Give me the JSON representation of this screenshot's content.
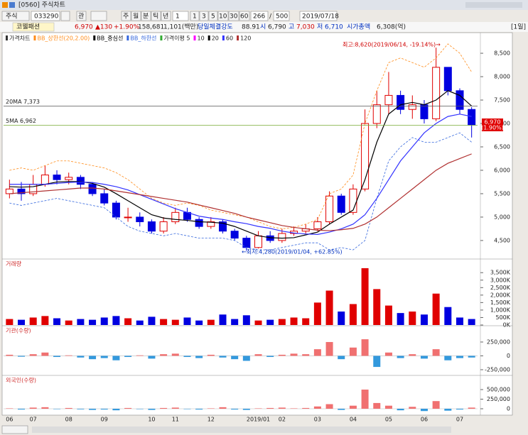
{
  "window": {
    "title": "[0560] 주식차트"
  },
  "toolbar": {
    "market": "주식",
    "code": "033290",
    "watch": "관",
    "buttons": [
      "주",
      "월",
      "분",
      "틱",
      "년"
    ],
    "interval": "1",
    "periods": [
      "1",
      "3",
      "5",
      "10",
      "30",
      "60"
    ],
    "count": "266",
    "total": "500",
    "date": "2019/07/18"
  },
  "info_bar": {
    "name": "코웰패션",
    "price": "6,970",
    "change": "▲130",
    "change_pct": "+1.90%",
    "volume": "158,681",
    "amount": "1,101(백만)",
    "strength_label": "당일체결강도",
    "strength": "88.91",
    "open_label": "시",
    "open": "6,790",
    "high_label": "고",
    "high": "7,030",
    "low_label": "저",
    "low": "6,710",
    "cap_label": "시가총액",
    "cap": "6,308(억)",
    "period": "[1일]"
  },
  "chart_data": [
    {
      "type": "candlestick",
      "title": "가격차트",
      "up_color": "#e00000",
      "down_color": "#0000e0",
      "categories": [
        "06",
        null,
        "07",
        null,
        null,
        "08",
        null,
        null,
        "09",
        null,
        null,
        null,
        "10",
        null,
        "11",
        null,
        null,
        "12",
        null,
        null,
        null,
        "2019/01",
        null,
        "02",
        null,
        null,
        "03",
        null,
        null,
        "04",
        null,
        null,
        "05",
        null,
        null,
        "06",
        null,
        null,
        "07",
        null
      ],
      "open": [
        5500,
        5600,
        5500,
        5700,
        5900,
        5800,
        5850,
        5700,
        5500,
        5300,
        5000,
        5000,
        4900,
        4700,
        4900,
        5100,
        4950,
        4800,
        4900,
        4700,
        4550,
        4350,
        4600,
        4500,
        4650,
        4700,
        4750,
        4900,
        5450,
        5100,
        5600,
        7000,
        7400,
        7600,
        7300,
        7400,
        7100,
        8200,
        7700,
        7300
      ],
      "high": [
        5800,
        5750,
        5900,
        6100,
        6000,
        5950,
        5900,
        5750,
        5600,
        5350,
        5200,
        5100,
        4950,
        5000,
        5200,
        5200,
        5000,
        5000,
        4950,
        4750,
        4600,
        4700,
        4700,
        4750,
        4800,
        4850,
        5000,
        5550,
        5500,
        5700,
        7300,
        7700,
        8100,
        7700,
        7600,
        7500,
        8620,
        8200,
        7750,
        7350
      ],
      "low": [
        5400,
        5350,
        5450,
        5650,
        5700,
        5700,
        5600,
        5450,
        5250,
        4950,
        4900,
        4800,
        4650,
        4650,
        4850,
        4900,
        4750,
        4750,
        4650,
        4500,
        4280,
        4330,
        4450,
        4450,
        4600,
        4650,
        4700,
        4850,
        5050,
        5050,
        5550,
        6900,
        7200,
        7200,
        7100,
        7000,
        7050,
        7600,
        7200,
        6700
      ],
      "close": [
        5600,
        5500,
        5700,
        5900,
        5800,
        5850,
        5700,
        5500,
        5300,
        5000,
        5000,
        4900,
        4700,
        4900,
        5100,
        4950,
        4800,
        4900,
        4700,
        4550,
        4350,
        4600,
        4500,
        4650,
        4700,
        4750,
        4900,
        5450,
        5100,
        5600,
        7000,
        7400,
        7600,
        7300,
        7400,
        7100,
        8200,
        7700,
        7300,
        6970
      ],
      "series": [
        {
          "name": "BB_상한선(20,2.00)",
          "color": "#ff8c1a",
          "dash": true,
          "values": [
            6000,
            6050,
            6000,
            6100,
            6200,
            6200,
            6150,
            6100,
            6050,
            5950,
            5800,
            5600,
            5400,
            5300,
            5250,
            5300,
            5250,
            5150,
            5100,
            5050,
            5000,
            4900,
            4800,
            4750,
            4780,
            4850,
            4950,
            5500,
            5600,
            5900,
            7000,
            7700,
            8300,
            8400,
            8300,
            8200,
            8400,
            8700,
            8500,
            8100
          ]
        },
        {
          "name": "BB_중심선",
          "color": "#000000",
          "dash": false,
          "values": [
            5650,
            5640,
            5650,
            5700,
            5750,
            5760,
            5760,
            5720,
            5640,
            5500,
            5350,
            5200,
            5050,
            4980,
            4950,
            4930,
            4900,
            4890,
            4870,
            4800,
            4700,
            4600,
            4560,
            4550,
            4560,
            4620,
            4680,
            4850,
            5000,
            5150,
            5800,
            6600,
            7200,
            7400,
            7450,
            7400,
            7500,
            7700,
            7600,
            7373
          ]
        },
        {
          "name": "BB_하한선",
          "color": "#3366dd",
          "dash": true,
          "values": [
            5300,
            5250,
            5300,
            5350,
            5400,
            5350,
            5300,
            5250,
            5200,
            5000,
            4800,
            4700,
            4650,
            4600,
            4650,
            4600,
            4550,
            4550,
            4550,
            4500,
            4350,
            4300,
            4300,
            4350,
            4400,
            4450,
            4450,
            4300,
            4350,
            4300,
            4500,
            5400,
            6200,
            6500,
            6700,
            6600,
            6600,
            6700,
            6800,
            6600
          ]
        },
        {
          "name": "60",
          "color": "#3333ff",
          "dash": false,
          "values": [
            5700,
            5700,
            5700,
            5700,
            5720,
            5740,
            5750,
            5740,
            5700,
            5650,
            5580,
            5480,
            5380,
            5280,
            5180,
            5100,
            5020,
            4980,
            4950,
            4900,
            4860,
            4800,
            4760,
            4700,
            4660,
            4640,
            4630,
            4680,
            4750,
            4850,
            5050,
            5400,
            5800,
            6200,
            6500,
            6800,
            7000,
            7150,
            7200,
            7150
          ]
        },
        {
          "name": "120",
          "color": "#b03030",
          "dash": false,
          "values": [
            5500,
            5520,
            5540,
            5560,
            5580,
            5600,
            5620,
            5620,
            5600,
            5560,
            5520,
            5480,
            5440,
            5400,
            5360,
            5320,
            5260,
            5200,
            5140,
            5080,
            5000,
            4940,
            4880,
            4820,
            4780,
            4750,
            4720,
            4710,
            4730,
            4760,
            4850,
            5000,
            5200,
            5400,
            5600,
            5800,
            6000,
            6150,
            6250,
            6350
          ]
        }
      ],
      "ma_legend": [
        {
          "name": "가격이평 5",
          "color": "#33aa33"
        },
        {
          "name": "10",
          "color": "#ff00ff"
        },
        {
          "name": "20",
          "color": "#000000"
        }
      ],
      "ylim": [
        4150,
        8910
      ],
      "yticks": [
        {
          "value": 4500,
          "label": "4,500"
        },
        {
          "value": 5000,
          "label": "5,000"
        },
        {
          "value": 5500,
          "label": "5,500"
        },
        {
          "value": 6000,
          "label": "6,000"
        },
        {
          "value": 6500,
          "label": "6,500"
        },
        {
          "value": 7000,
          "label": "7,000"
        },
        {
          "value": 7500,
          "label": "7,500"
        },
        {
          "value": 8000,
          "label": "8,000"
        },
        {
          "value": 8500,
          "label": "8,500"
        }
      ],
      "ref_lines": [
        {
          "label": "20MA 7,373",
          "value": 7373,
          "color": "#555555"
        },
        {
          "label": "5MA 6,962",
          "value": 6962,
          "color": "#77aa33"
        }
      ],
      "current": {
        "label": "6,970",
        "value": 6970,
        "pct": "(1.90%)"
      },
      "annotations": {
        "high": "최고:8,620(2019/06/14, -19.14%)→",
        "low": "←최저:4,280(2019/01/04, +62.85%)"
      }
    },
    {
      "type": "bar",
      "title": "거래량",
      "values": [
        400000,
        350000,
        500000,
        600000,
        450000,
        300000,
        400000,
        350000,
        500000,
        600000,
        450000,
        300000,
        550000,
        400000,
        350000,
        500000,
        300000,
        350000,
        700000,
        400000,
        650000,
        300000,
        350000,
        400000,
        500000,
        450000,
        1500000,
        2300000,
        900000,
        1400000,
        3800000,
        2400000,
        1300000,
        800000,
        900000,
        700000,
        2100000,
        1200000,
        500000,
        400000
      ],
      "ylim": [
        0,
        4270000
      ],
      "yticks": [
        {
          "value": 0,
          "label": "0K"
        },
        {
          "value": 500000,
          "label": "500K"
        },
        {
          "value": 1000000,
          "label": "1,000K"
        },
        {
          "value": 1500000,
          "label": "1,500K"
        },
        {
          "value": 2000000,
          "label": "2,000K"
        },
        {
          "value": 2500000,
          "label": "2,500K"
        },
        {
          "value": 3000000,
          "label": "3,000K"
        },
        {
          "value": 3500000,
          "label": "3,500K"
        }
      ]
    },
    {
      "type": "bar",
      "title": "기관(수량)",
      "pos_color": "#f07070",
      "neg_color": "#3399dd",
      "values": [
        20000,
        -15000,
        30000,
        60000,
        -20000,
        10000,
        -30000,
        -60000,
        -40000,
        -80000,
        -20000,
        10000,
        -50000,
        30000,
        40000,
        -20000,
        -40000,
        20000,
        -30000,
        -60000,
        -90000,
        30000,
        -20000,
        20000,
        40000,
        30000,
        120000,
        250000,
        -60000,
        150000,
        300000,
        -200000,
        60000,
        -40000,
        30000,
        -50000,
        120000,
        -80000,
        -40000,
        -30000
      ],
      "ylim": [
        -340000,
        506000
      ],
      "yticks": [
        {
          "value": -250000,
          "label": "-250,000"
        },
        0,
        {
          "value": 250000,
          "label": "250,000"
        }
      ]
    },
    {
      "type": "bar",
      "title": "외국인(수량)",
      "pos_color": "#f07070",
      "neg_color": "#3399dd",
      "values": [
        10000,
        -20000,
        30000,
        40000,
        -10000,
        20000,
        -15000,
        -30000,
        -20000,
        -40000,
        20000,
        -10000,
        -30000,
        20000,
        30000,
        -10000,
        -20000,
        10000,
        40000,
        -20000,
        -30000,
        10000,
        20000,
        30000,
        10000,
        20000,
        60000,
        120000,
        -30000,
        80000,
        500000,
        150000,
        80000,
        -40000,
        50000,
        -60000,
        200000,
        -50000,
        -20000,
        30000
      ],
      "ylim": [
        -148000,
        815000
      ],
      "yticks": [
        0,
        {
          "value": 250000,
          "label": "250,000"
        },
        {
          "value": 500000,
          "label": "500,000"
        }
      ]
    }
  ]
}
